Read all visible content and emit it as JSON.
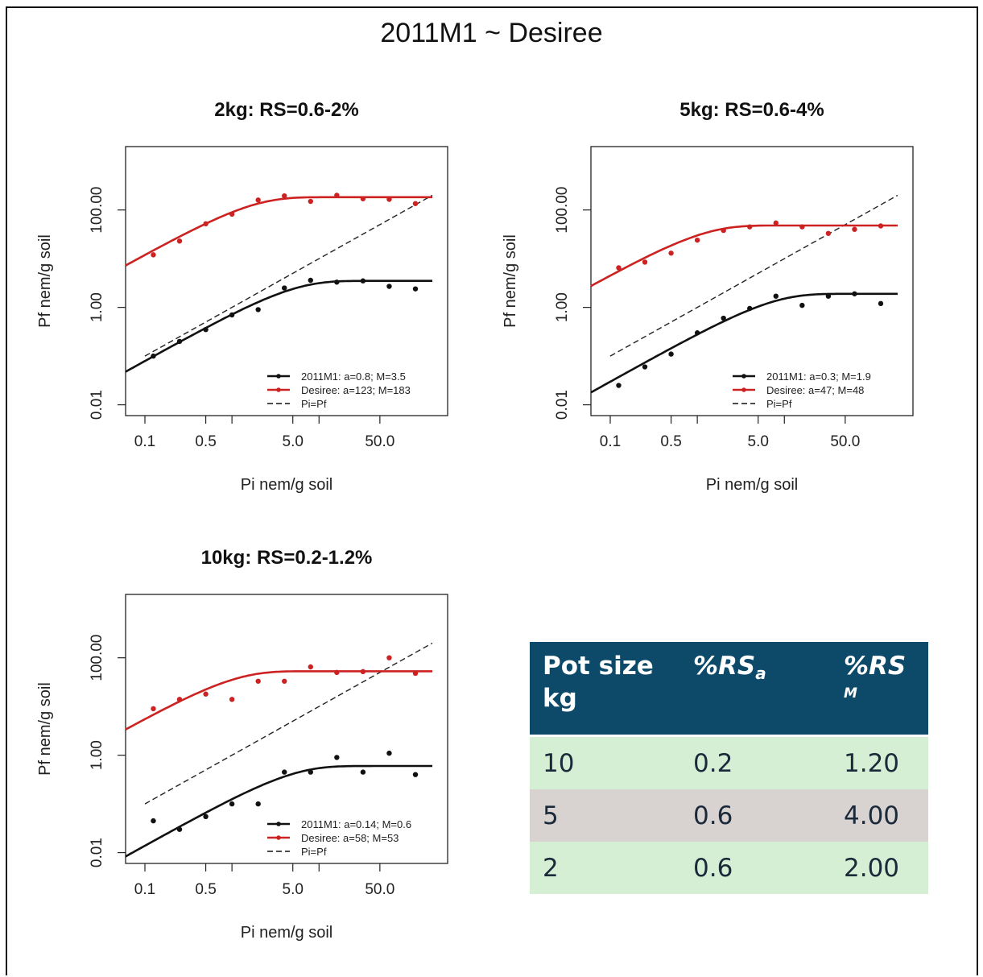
{
  "page": {
    "title": "2011M1 ~ Desiree"
  },
  "chart_data": [
    {
      "type": "scatter",
      "title": "2kg: RS=0.6-2%",
      "xlabel": "Pi nem/g soil",
      "ylabel": "Pf nem/g soil",
      "x_scale": "log",
      "y_scale": "log",
      "xlim": [
        0.06,
        300
      ],
      "ylim": [
        0.006,
        2000
      ],
      "x_ticks": [
        "0.1",
        "0.5",
        "5.0",
        "50.0"
      ],
      "y_ticks": [
        "0.01",
        "1.00",
        "100.00"
      ],
      "legend_position": "bottom-right",
      "legend": [
        {
          "label": "2011M1: a=0.8; M=3.5",
          "style": "solid",
          "color": "#111111"
        },
        {
          "label": "Desiree: a=123; M=183",
          "style": "solid",
          "color": "#cc2222"
        },
        {
          "label": "Pi=Pf",
          "style": "dashed",
          "color": "#111111"
        }
      ],
      "series": [
        {
          "color": "#111111",
          "fit": {
            "a": 0.8,
            "M": 3.5
          },
          "x": [
            0.125,
            0.25,
            0.5,
            1,
            2,
            4,
            8,
            16,
            32,
            64,
            128
          ],
          "y": [
            0.1,
            0.2,
            0.35,
            0.7,
            0.9,
            2.5,
            3.6,
            3.3,
            3.5,
            2.7,
            2.4
          ]
        },
        {
          "color": "#cc2222",
          "fit": {
            "a": 123,
            "M": 183
          },
          "x": [
            0.125,
            0.25,
            0.5,
            1,
            2,
            4,
            8,
            16,
            32,
            64,
            128
          ],
          "y": [
            12,
            23,
            52,
            82,
            160,
            195,
            150,
            200,
            170,
            165,
            135
          ]
        }
      ]
    },
    {
      "type": "scatter",
      "title": "5kg: RS=0.6-4%",
      "xlabel": "Pi nem/g soil",
      "ylabel": "Pf nem/g soil",
      "x_scale": "log",
      "y_scale": "log",
      "xlim": [
        0.06,
        300
      ],
      "ylim": [
        0.006,
        2000
      ],
      "x_ticks": [
        "0.1",
        "0.5",
        "5.0",
        "50.0"
      ],
      "y_ticks": [
        "0.01",
        "1.00",
        "100.00"
      ],
      "legend_position": "bottom-right",
      "legend": [
        {
          "label": "2011M1: a=0.3; M=1.9",
          "style": "solid",
          "color": "#111111"
        },
        {
          "label": "Desiree: a=47; M=48",
          "style": "solid",
          "color": "#cc2222"
        },
        {
          "label": "Pi=Pf",
          "style": "dashed",
          "color": "#111111"
        }
      ],
      "series": [
        {
          "color": "#111111",
          "fit": {
            "a": 0.3,
            "M": 1.9
          },
          "x": [
            0.125,
            0.25,
            0.5,
            1,
            2,
            4,
            8,
            16,
            32,
            64,
            128
          ],
          "y": [
            0.025,
            0.06,
            0.11,
            0.3,
            0.6,
            0.95,
            1.7,
            1.1,
            1.7,
            1.9,
            1.2
          ]
        },
        {
          "color": "#cc2222",
          "fit": {
            "a": 47,
            "M": 48
          },
          "x": [
            0.125,
            0.25,
            0.5,
            1,
            2,
            4,
            8,
            16,
            32,
            64,
            128
          ],
          "y": [
            6.5,
            8.5,
            13,
            24,
            38,
            45,
            54,
            45,
            33,
            40,
            47
          ]
        }
      ]
    },
    {
      "type": "scatter",
      "title": "10kg: RS=0.2-1.2%",
      "xlabel": "Pi nem/g soil",
      "ylabel": "Pf nem/g soil",
      "x_scale": "log",
      "y_scale": "log",
      "xlim": [
        0.06,
        300
      ],
      "ylim": [
        0.006,
        2000
      ],
      "x_ticks": [
        "0.1",
        "0.5",
        "5.0",
        "50.0"
      ],
      "y_ticks": [
        "0.01",
        "1.00",
        "100.00"
      ],
      "legend_position": "bottom-right",
      "legend": [
        {
          "label": "2011M1: a=0.14; M=0.6",
          "style": "solid",
          "color": "#111111"
        },
        {
          "label": "Desiree: a=58; M=53",
          "style": "solid",
          "color": "#cc2222"
        },
        {
          "label": "Pi=Pf",
          "style": "dashed",
          "color": "#111111"
        }
      ],
      "series": [
        {
          "color": "#111111",
          "fit": {
            "a": 0.14,
            "M": 0.6
          },
          "x": [
            0.125,
            0.25,
            0.5,
            1,
            2,
            4,
            8,
            16,
            32,
            64,
            128
          ],
          "y": [
            0.045,
            0.03,
            0.055,
            0.1,
            0.1,
            0.45,
            0.45,
            0.9,
            0.45,
            1.1,
            0.4
          ]
        },
        {
          "color": "#cc2222",
          "fit": {
            "a": 58,
            "M": 53
          },
          "x": [
            0.125,
            0.25,
            0.5,
            1,
            2,
            4,
            8,
            16,
            32,
            64,
            128
          ],
          "y": [
            9,
            14,
            18,
            14,
            33,
            33,
            65,
            50,
            52,
            100,
            48
          ]
        }
      ]
    }
  ],
  "table": {
    "headers": {
      "col1_line1": "Pot size",
      "col1_line2": "kg",
      "col2_main": "%RS",
      "col2_sub": "a",
      "col3_main": "%RS",
      "col3_sub": "M"
    },
    "rows": [
      {
        "pot": "10",
        "rsa": "0.2",
        "rsm": "1.20"
      },
      {
        "pot": "5",
        "rsa": "0.6",
        "rsm": "4.00"
      },
      {
        "pot": "2",
        "rsa": "0.6",
        "rsm": "2.00"
      }
    ]
  }
}
